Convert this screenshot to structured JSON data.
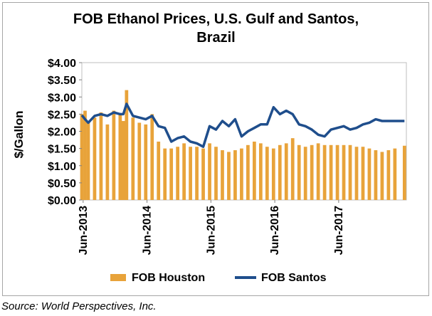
{
  "source": "Source: World Perspectives, Inc.",
  "colors": {
    "houston": "#e8a33a",
    "santos": "#1f4e8c",
    "grid": "#d9d9d9"
  },
  "chart_data": {
    "type": "bar",
    "title": [
      "FOB Ethanol Prices, U.S. Gulf and Santos,",
      "Brazil"
    ],
    "ylabel": "$/Gallon",
    "xlabel": "",
    "ylim": [
      0,
      4
    ],
    "yticks": [
      "$0.00",
      "$0.50",
      "$1.00",
      "$1.50",
      "$2.00",
      "$2.50",
      "$3.00",
      "$3.50",
      "$4.00"
    ],
    "xtick_labels": [
      "Jun-2013",
      "Jun-2014",
      "Jun-2015",
      "Jun-2016",
      "Jun-2017"
    ],
    "x": [
      2013.4,
      2013.45,
      2013.5,
      2013.6,
      2013.7,
      2013.8,
      2013.9,
      2014.0,
      2014.05,
      2014.1,
      2014.2,
      2014.3,
      2014.4,
      2014.5,
      2014.6,
      2014.7,
      2014.8,
      2014.9,
      2015.0,
      2015.1,
      2015.2,
      2015.3,
      2015.4,
      2015.5,
      2015.6,
      2015.7,
      2015.8,
      2015.9,
      2016.0,
      2016.1,
      2016.2,
      2016.3,
      2016.4,
      2016.5,
      2016.6,
      2016.7,
      2016.8,
      2016.9,
      2017.0,
      2017.1,
      2017.2,
      2017.3,
      2017.4,
      2017.5,
      2017.6,
      2017.7,
      2017.8,
      2017.9,
      2018.0,
      2018.1,
      2018.2,
      2018.3,
      2018.45
    ],
    "series": [
      {
        "name": "FOB Houston",
        "style": "bars",
        "values": [
          2.5,
          2.6,
          2.25,
          2.4,
          2.55,
          2.2,
          2.6,
          2.5,
          2.3,
          3.2,
          2.4,
          2.25,
          2.2,
          2.5,
          1.7,
          1.5,
          1.5,
          1.55,
          1.65,
          1.55,
          1.55,
          1.5,
          1.65,
          1.55,
          1.45,
          1.4,
          1.45,
          1.5,
          1.6,
          1.7,
          1.65,
          1.55,
          1.5,
          1.6,
          1.65,
          1.8,
          1.6,
          1.55,
          1.6,
          1.65,
          1.6,
          1.6,
          1.6,
          1.6,
          1.6,
          1.55,
          1.55,
          1.5,
          1.45,
          1.4,
          1.45,
          1.5,
          1.58
        ]
      },
      {
        "name": "FOB Santos",
        "style": "line",
        "values": [
          2.47,
          2.35,
          2.25,
          2.45,
          2.5,
          2.45,
          2.55,
          2.5,
          2.5,
          2.8,
          2.45,
          2.4,
          2.35,
          2.45,
          2.15,
          2.1,
          1.7,
          1.8,
          1.85,
          1.7,
          1.65,
          1.55,
          2.15,
          2.05,
          2.3,
          2.15,
          2.35,
          1.85,
          2.0,
          2.1,
          2.2,
          2.2,
          2.7,
          2.5,
          2.6,
          2.5,
          2.2,
          2.15,
          2.05,
          1.9,
          1.85,
          2.05,
          2.1,
          2.15,
          2.05,
          2.1,
          2.2,
          2.25,
          2.35,
          2.3,
          2.3,
          2.3,
          2.3
        ]
      }
    ],
    "legend_position": "bottom",
    "grid": false
  }
}
